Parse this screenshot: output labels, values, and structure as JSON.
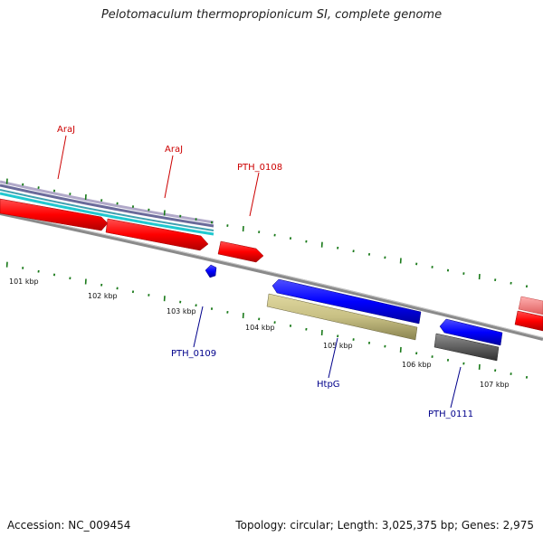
{
  "title": "Pelotomaculum thermopropionicum SI, complete genome",
  "accession": "Accession: NC_009454",
  "summary": "Topology: circular; Length: 3,025,375 bp; Genes: 2,975",
  "ticks": [
    "101 kbp",
    "102 kbp",
    "103 kbp",
    "104 kbp",
    "105 kbp",
    "106 kbp",
    "107 kbp"
  ],
  "gene_labels": {
    "araj_1": "AraJ",
    "araj_2": "AraJ",
    "pth_0108": "PTH_0108",
    "pth_0109": "PTH_0109",
    "htpg": "HtpG",
    "pth_0111": "PTH_0111"
  },
  "colors": {
    "forward_cds": "#ff0000",
    "reverse_cds": "#0000ff",
    "backbone": "#808080",
    "tick": "#1a7a1a",
    "label_forward": "#cc0000",
    "label_reverse": "#00008b",
    "htpg_feature": "#c8c084",
    "dark_feature": "#555555"
  }
}
